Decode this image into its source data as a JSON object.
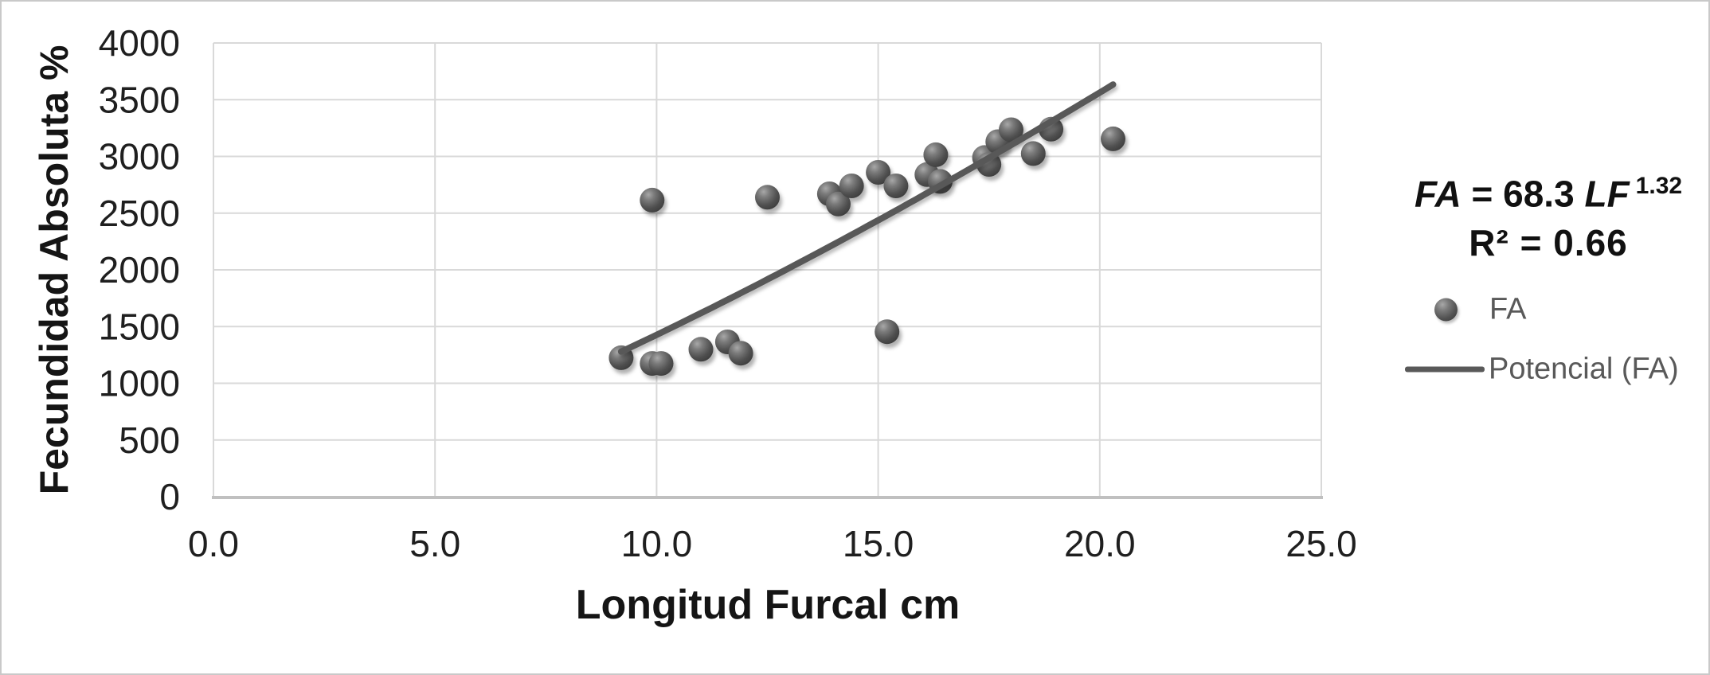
{
  "chart_data": {
    "type": "scatter",
    "title": "",
    "xlabel": "Longitud Furcal cm",
    "ylabel": "Fecundidad Absoluta %",
    "xlim": [
      0.0,
      25.0
    ],
    "ylim": [
      0,
      4000
    ],
    "x_tick_labels": [
      "0.0",
      "5.0",
      "10.0",
      "15.0",
      "20.0",
      "25.0"
    ],
    "y_tick_labels": [
      "0",
      "500",
      "1000",
      "1500",
      "2000",
      "2500",
      "3000",
      "3500",
      "4000"
    ],
    "grid": true,
    "legend_position": "right",
    "series": [
      {
        "name": "FA",
        "type": "scatter",
        "marker": "sphere",
        "points": [
          [
            9.2,
            1225
          ],
          [
            9.9,
            1175
          ],
          [
            10.1,
            1175
          ],
          [
            11.0,
            1300
          ],
          [
            11.6,
            1365
          ],
          [
            11.9,
            1265
          ],
          [
            15.2,
            1455
          ],
          [
            9.9,
            2615
          ],
          [
            12.5,
            2640
          ],
          [
            13.9,
            2670
          ],
          [
            14.1,
            2580
          ],
          [
            14.4,
            2740
          ],
          [
            15.0,
            2860
          ],
          [
            15.4,
            2740
          ],
          [
            16.1,
            2840
          ],
          [
            16.3,
            3015
          ],
          [
            16.4,
            2780
          ],
          [
            17.4,
            2990
          ],
          [
            17.5,
            2930
          ],
          [
            17.7,
            3130
          ],
          [
            18.0,
            3235
          ],
          [
            18.5,
            3025
          ],
          [
            18.9,
            3240
          ],
          [
            20.3,
            3155
          ]
        ]
      },
      {
        "name": "Potencial (FA)",
        "type": "power_trendline",
        "coefficient": 68.3,
        "exponent": 1.32,
        "x_start": 9.2,
        "x_end": 20.3
      }
    ],
    "annotation": {
      "eq_lhs": "FA",
      "eq_mid": "= 68.3",
      "eq_var": "LF",
      "eq_sup": "1.32",
      "r_squared": "R² = 0.66"
    },
    "legend": [
      {
        "label": "FA",
        "marker": "sphere"
      },
      {
        "label": "Potencial (FA)",
        "marker": "line"
      }
    ]
  },
  "colors": {
    "marker_highlight": "#a8a8a8",
    "marker_mid": "#7a7a7a",
    "marker_body": "#525252",
    "marker_dark": "#363636",
    "trendline": "#595959",
    "gridline": "#d9d9d9",
    "axis_line": "#c0c0c0",
    "tick_text": "#1f1f1f",
    "legend_text": "#595959"
  }
}
